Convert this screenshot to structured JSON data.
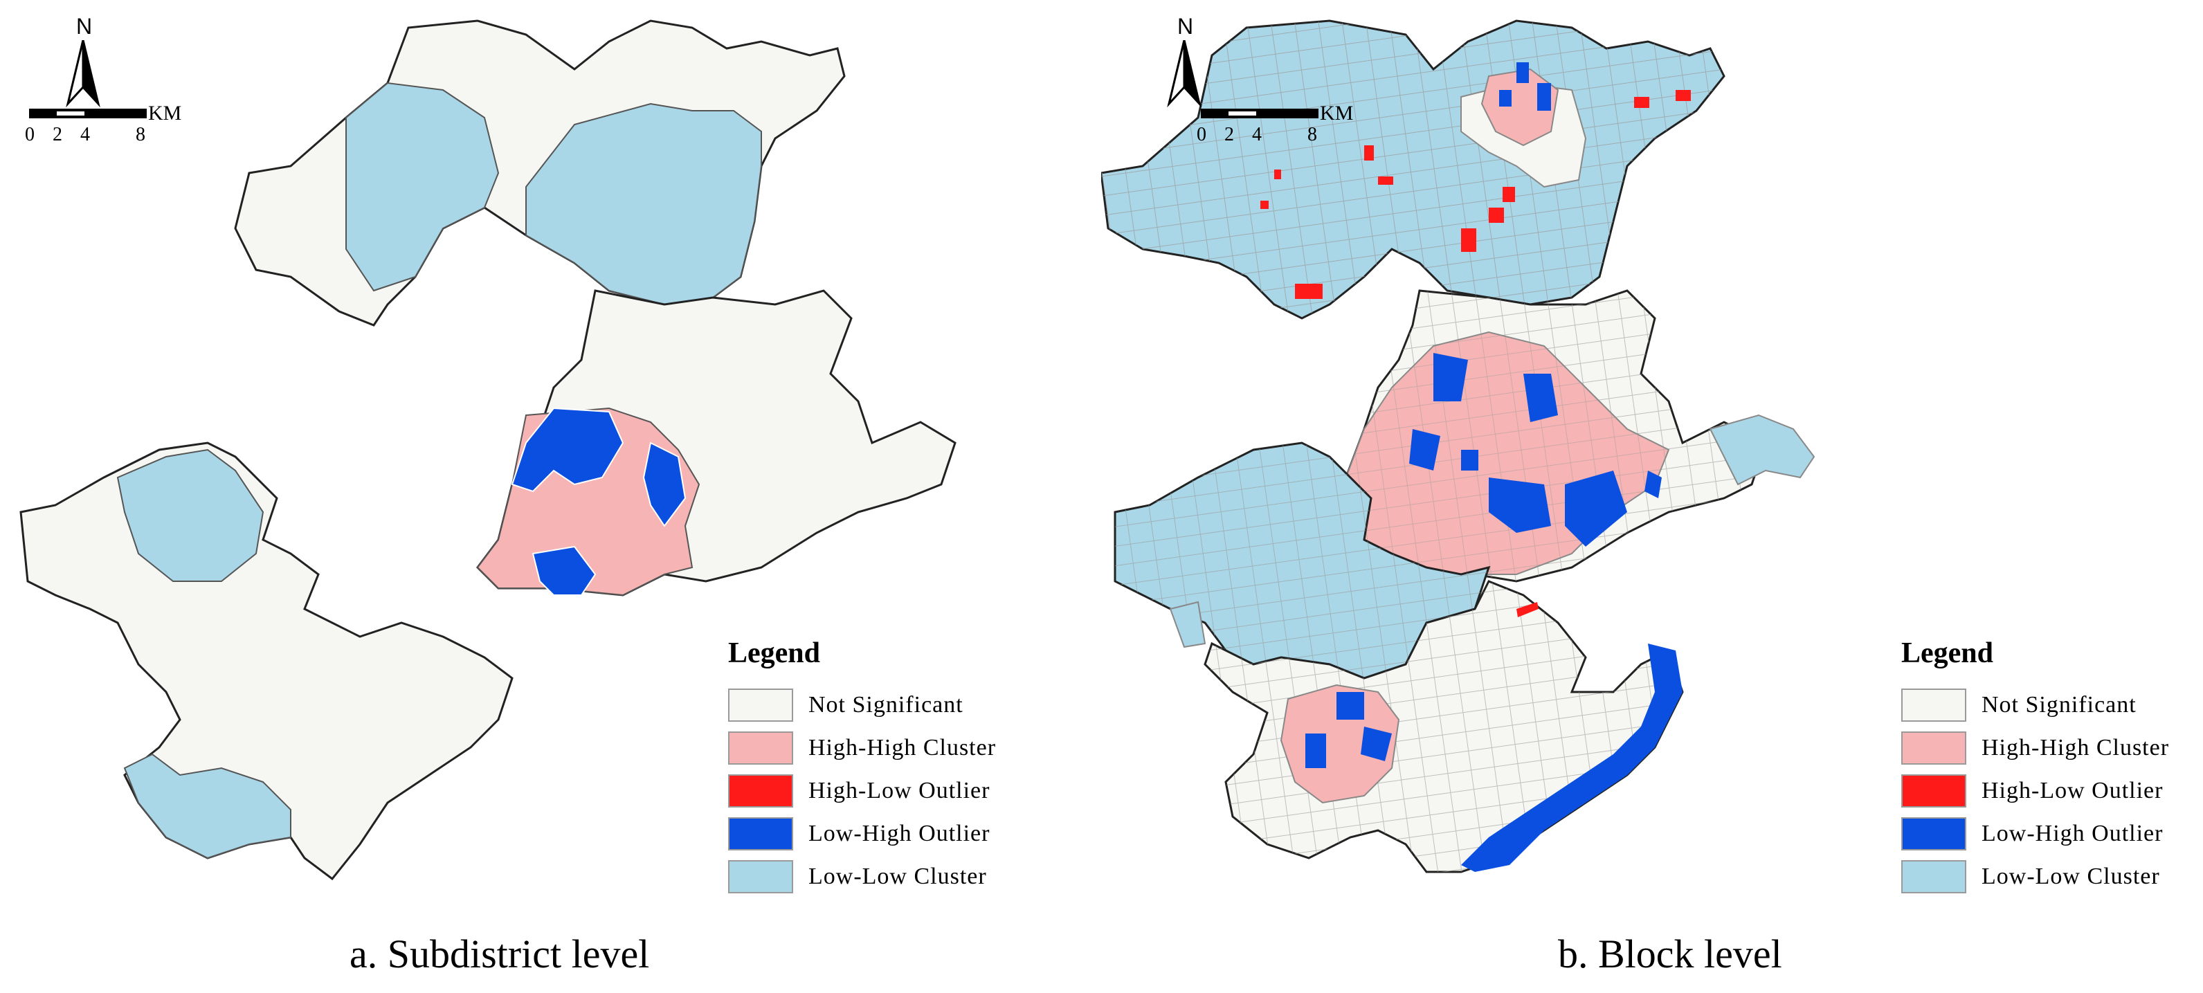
{
  "legend": {
    "title": "Legend",
    "items": [
      {
        "label": "Not Significant",
        "color": "#f6f6f2"
      },
      {
        "label": "High-High Cluster",
        "color": "#f7b4b4"
      },
      {
        "label": "High-Low Outlier",
        "color": "#ff1a1a"
      },
      {
        "label": "Low-High Outlier",
        "color": "#0a4fe0"
      },
      {
        "label": "Low-Low Cluster",
        "color": "#a9d7e8"
      }
    ]
  },
  "north_arrow": {
    "letter": "N"
  },
  "scale": {
    "unit": "KM",
    "ticks": [
      "0",
      "2",
      "4",
      "8"
    ]
  },
  "panels": [
    {
      "caption": "a. Subdistrict level"
    },
    {
      "caption": "b. Block level"
    }
  ]
}
